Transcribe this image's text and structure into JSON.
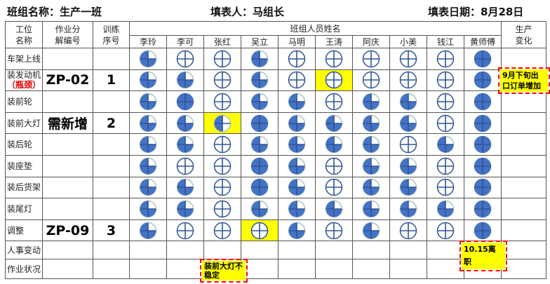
{
  "header": {
    "team": "班组名称：生产一班",
    "filler": "填表人：马组长",
    "date": "填表日期：8月28日"
  },
  "columns": {
    "station": "工位\n名称",
    "code": "作业分\n解编号",
    "seq": "训练\n序号",
    "members_title": "班组人员姓名",
    "change": "生产\n变化"
  },
  "members": [
    "李玲",
    "李可",
    "张红",
    "吴立",
    "马明",
    "王涛",
    "阿庆",
    "小美",
    "钱江",
    "黄师傅"
  ],
  "colors": {
    "fill": "#4472c4",
    "stroke": "#2f5597",
    "highlight": "#ffff00",
    "alert": "#ff0000"
  },
  "rows": [
    {
      "station": "车架上线",
      "code": "",
      "seq": "",
      "levels": [
        0.75,
        0,
        0,
        0.75,
        0,
        0,
        0,
        0,
        0,
        1
      ]
    },
    {
      "station": "装发动机",
      "sub": "（瓶颈）",
      "code": "ZP-02",
      "seq": "1",
      "levels": [
        0.75,
        0.75,
        0,
        0.75,
        0,
        0,
        0,
        0,
        0,
        1
      ],
      "highlight": [
        5
      ]
    },
    {
      "station": "装前轮",
      "code": "",
      "seq": "",
      "levels": [
        0.75,
        1,
        0,
        0.75,
        0.75,
        0,
        0.75,
        0.75,
        0,
        1
      ]
    },
    {
      "station": "装前大灯",
      "code": "需新增",
      "seq": "2",
      "levels": [
        0.75,
        0.75,
        0.5,
        1,
        0.75,
        0.75,
        0.75,
        0.75,
        0,
        1
      ],
      "highlight": [
        2
      ]
    },
    {
      "station": "装后轮",
      "code": "",
      "seq": "",
      "levels": [
        0.75,
        0.75,
        0,
        0.75,
        0.75,
        0.75,
        0.75,
        0,
        0.75,
        1
      ]
    },
    {
      "station": "装座垫",
      "code": "",
      "seq": "",
      "levels": [
        0.75,
        0,
        0,
        1,
        0.75,
        0,
        0.75,
        0.75,
        0,
        1
      ]
    },
    {
      "station": "装后货架",
      "code": "",
      "seq": "",
      "levels": [
        0.75,
        0.75,
        0,
        1,
        0.75,
        0,
        0.75,
        0.75,
        0,
        1
      ]
    },
    {
      "station": "装尾灯",
      "code": "",
      "seq": "",
      "levels": [
        0.75,
        0.75,
        0,
        0.75,
        0.75,
        0.75,
        0.75,
        0.75,
        0.75,
        1
      ]
    },
    {
      "station": "调整",
      "code": "ZP-09",
      "seq": "3",
      "levels": [
        0.75,
        0,
        0,
        0,
        0.75,
        0,
        0.75,
        0,
        0,
        1
      ],
      "highlight": [
        3
      ]
    }
  ],
  "footer_rows": {
    "personnel": "人事变动",
    "status": "作业状况"
  },
  "notes": {
    "change": "9月下旬出口订单增加",
    "personnel": "10.15离职",
    "status": "装前大灯不稳定"
  }
}
